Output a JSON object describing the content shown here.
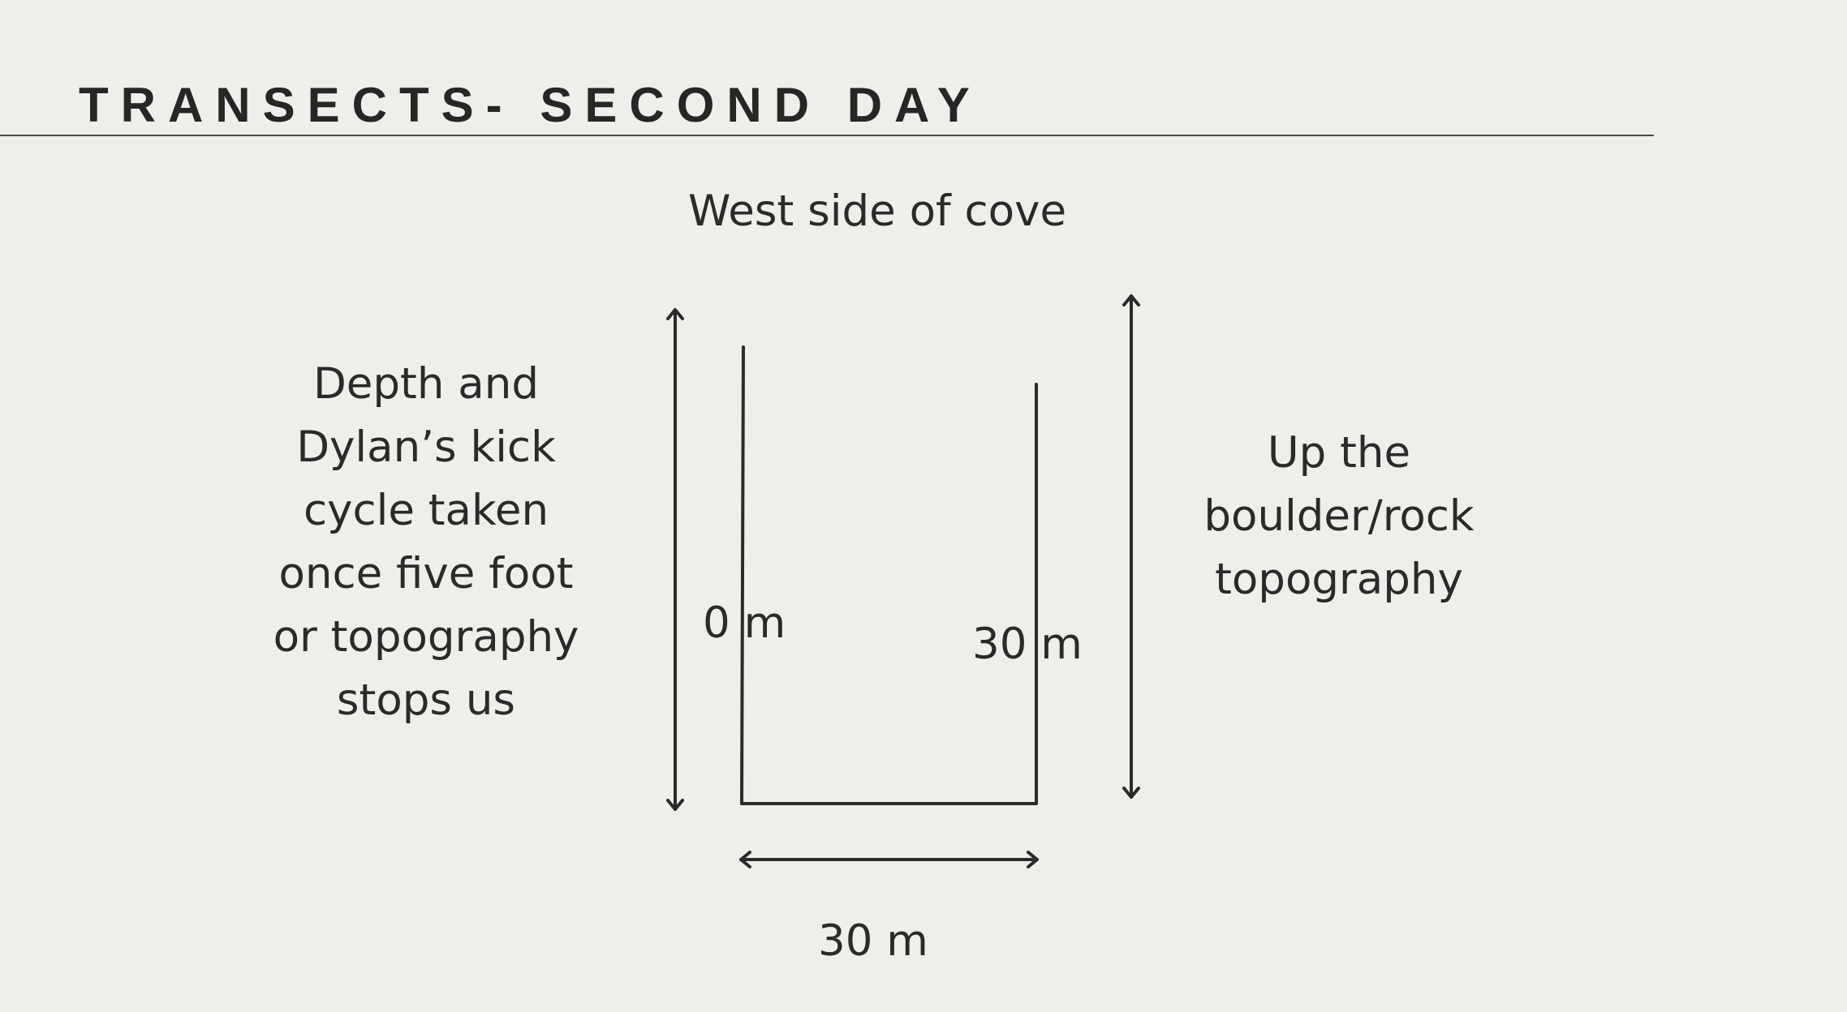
{
  "title": "TRANSECTS- SECOND DAY",
  "diagram": {
    "top_label": "West side of cove",
    "left_note_lines": [
      "Depth and",
      "Dylan’s kick",
      "cycle taken",
      "once five foot",
      "or topography",
      "stops us"
    ],
    "right_note_lines": [
      "Up the",
      "boulder/rock",
      "topography"
    ],
    "start_label": "0 m",
    "end_label": "30 m",
    "width_label": "30 m"
  },
  "colors": {
    "background": "#efeeea",
    "ink": "#2a2a2a"
  }
}
